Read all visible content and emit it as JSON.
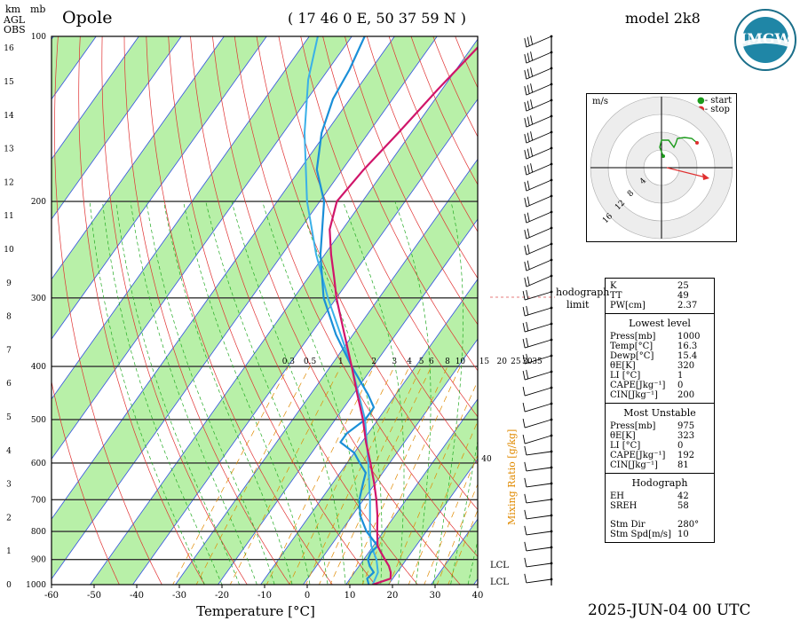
{
  "header": {
    "station": "Opole",
    "coords": "( 17 46 0 E, 50 37 59 N )",
    "model": "model 2k8",
    "datetime": "2025-JUN-04  00 UTC",
    "unit_km": "km",
    "unit_mb": "mb",
    "agl": "AGL",
    "obs": "OBS",
    "logo_text": "IMGW"
  },
  "chart_data": {
    "type": "skew-t",
    "xlabel": "Temperature [°C]",
    "mixing_ratio_label": "Mixing Ratio [g/kg]",
    "x_ticks": [
      "-60",
      "-50",
      "-40",
      "-30",
      "-20",
      "-10",
      "0",
      "10",
      "20",
      "30",
      "40"
    ],
    "pressure_ticks": [
      {
        "p": 1000,
        "label": "1000"
      },
      {
        "p": 900,
        "label": "900"
      },
      {
        "p": 800,
        "label": "800"
      },
      {
        "p": 700,
        "label": "700"
      },
      {
        "p": 600,
        "label": "600"
      },
      {
        "p": 500,
        "label": "500"
      },
      {
        "p": 400,
        "label": "400"
      },
      {
        "p": 300,
        "label": "300"
      },
      {
        "p": 200,
        "label": "200"
      },
      {
        "p": 100,
        "label": "100"
      }
    ],
    "km_ticks": [
      "0",
      "1",
      "2",
      "3",
      "4",
      "5",
      "6",
      "7",
      "8",
      "9",
      "10",
      "11",
      "12",
      "13",
      "14",
      "15",
      "16"
    ],
    "mixing_ratio_values": [
      "0.3",
      "0.5",
      "1",
      "2",
      "3",
      "4",
      "5",
      "6",
      "8",
      "10",
      "15",
      "20",
      "25",
      "30",
      "35"
    ],
    "mixing_label_extra": "40",
    "lcl_labels": [
      "LCL",
      "LCL"
    ],
    "hodograph_limit_label": [
      "hodograph",
      "limit"
    ],
    "temperature": [
      [
        1000,
        16.3
      ],
      [
        975,
        19.5
      ],
      [
        950,
        18.5
      ],
      [
        925,
        17
      ],
      [
        900,
        15
      ],
      [
        875,
        13
      ],
      [
        850,
        11
      ],
      [
        800,
        8.5
      ],
      [
        750,
        6
      ],
      [
        700,
        3
      ],
      [
        650,
        -0.5
      ],
      [
        600,
        -4.5
      ],
      [
        550,
        -9
      ],
      [
        500,
        -13.5
      ],
      [
        450,
        -19
      ],
      [
        400,
        -25
      ],
      [
        350,
        -32
      ],
      [
        300,
        -40
      ],
      [
        275,
        -44
      ],
      [
        250,
        -48.5
      ],
      [
        225,
        -53
      ],
      [
        200,
        -56
      ],
      [
        175,
        -55
      ],
      [
        150,
        -53
      ],
      [
        125,
        -51
      ],
      [
        100,
        -48
      ]
    ],
    "dewpoint": [
      [
        1000,
        15.4
      ],
      [
        975,
        14
      ],
      [
        950,
        14.5
      ],
      [
        925,
        12.5
      ],
      [
        900,
        11
      ],
      [
        875,
        10.5
      ],
      [
        850,
        11
      ],
      [
        800,
        6
      ],
      [
        750,
        2
      ],
      [
        700,
        -1
      ],
      [
        650,
        -3
      ],
      [
        625,
        -4
      ],
      [
        600,
        -7
      ],
      [
        575,
        -10
      ],
      [
        550,
        -15
      ],
      [
        530,
        -15
      ],
      [
        500,
        -13
      ],
      [
        475,
        -13
      ],
      [
        450,
        -16.5
      ],
      [
        400,
        -25
      ],
      [
        350,
        -34
      ],
      [
        300,
        -43
      ],
      [
        250,
        -51
      ],
      [
        200,
        -59
      ],
      [
        175,
        -66
      ],
      [
        150,
        -71
      ],
      [
        130,
        -74
      ],
      [
        115,
        -75
      ],
      [
        100,
        -77
      ]
    ],
    "parcel": [
      [
        1000,
        16.3
      ],
      [
        950,
        15.5
      ],
      [
        900,
        13
      ],
      [
        850,
        9.5
      ],
      [
        800,
        6.8
      ],
      [
        700,
        1.5
      ],
      [
        600,
        -5
      ],
      [
        500,
        -13
      ],
      [
        400,
        -25
      ],
      [
        300,
        -42
      ],
      [
        250,
        -52
      ],
      [
        200,
        -63
      ],
      [
        150,
        -75
      ],
      [
        120,
        -83
      ],
      [
        100,
        -88
      ]
    ]
  },
  "hodograph": {
    "unit": "m/s",
    "legend_start": "- start",
    "legend_stop": "- stop",
    "ring_labels": [
      "4",
      "8",
      "12",
      "16"
    ]
  },
  "indices": {
    "general": [
      {
        "k": "K",
        "v": "25"
      },
      {
        "k": "TT",
        "v": "49"
      },
      {
        "k": "PW[cm]",
        "v": "2.37"
      }
    ],
    "lowest_title": "Lowest level",
    "lowest": [
      {
        "k": "Press[mb]",
        "v": "1000"
      },
      {
        "k": "Temp[°C]",
        "v": "16.3"
      },
      {
        "k": "Dewp[°C]",
        "v": "15.4"
      },
      {
        "k": "θE[K]",
        "v": "320"
      },
      {
        "k": "LI [°C]",
        "v": "1"
      },
      {
        "k": "CAPE[Jkg⁻¹]",
        "v": "0"
      },
      {
        "k": "CIN[Jkg⁻¹]",
        "v": "200"
      }
    ],
    "unstable_title": "Most Unstable",
    "unstable": [
      {
        "k": "Press[mb]",
        "v": "975"
      },
      {
        "k": "θE[K]",
        "v": "323"
      },
      {
        "k": "LI [°C]",
        "v": "0"
      },
      {
        "k": "CAPE[Jkg⁻¹]",
        "v": "192"
      },
      {
        "k": "CIN[Jkg⁻¹]",
        "v": "81"
      }
    ],
    "hodo_title": "Hodograph",
    "hodo": [
      {
        "k": "EH",
        "v": "42"
      },
      {
        "k": "SREH",
        "v": "58"
      }
    ],
    "storm": [
      {
        "k": "Stm Dir",
        "v": "280°"
      },
      {
        "k": "Stm Spd[m/s]",
        "v": "10"
      }
    ]
  }
}
